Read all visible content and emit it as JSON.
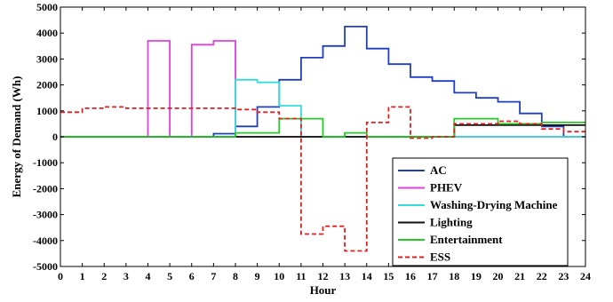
{
  "chart_data": {
    "type": "line",
    "title": "",
    "xlabel": "Hour",
    "ylabel": "Energy of Demand (Wh)",
    "xlim": [
      0,
      24
    ],
    "ylim": [
      -5000,
      5000
    ],
    "xticks": [
      "0",
      "1",
      "2",
      "3",
      "4",
      "5",
      "6",
      "7",
      "8",
      "9",
      "10",
      "11",
      "12",
      "13",
      "14",
      "15",
      "16",
      "17",
      "18",
      "19",
      "20",
      "21",
      "22",
      "23",
      "24"
    ],
    "yticks": [
      "5000",
      "4000",
      "3000",
      "2000",
      "1000",
      "0",
      "-1000",
      "-2000",
      "-3000",
      "-4000",
      "-5000"
    ],
    "grid": false,
    "legend_position": "bottom-right",
    "series": [
      {
        "name": "AC",
        "color": "#1f3fbf",
        "dash": "solid",
        "values": [
          0,
          0,
          0,
          0,
          0,
          0,
          0,
          120,
          400,
          1150,
          2200,
          3050,
          3500,
          4250,
          3400,
          2800,
          2300,
          2150,
          1700,
          1500,
          1350,
          900,
          400,
          0
        ]
      },
      {
        "name": "PHEV",
        "color": "#e040e0",
        "dash": "solid",
        "values": [
          0,
          0,
          0,
          0,
          3700,
          0,
          3550,
          3700,
          0,
          0,
          0,
          0,
          0,
          0,
          0,
          0,
          0,
          0,
          0,
          0,
          0,
          0,
          0,
          0
        ]
      },
      {
        "name": "Washing-Drying Machine",
        "color": "#33dddd",
        "dash": "solid",
        "values": [
          0,
          0,
          0,
          0,
          0,
          0,
          0,
          0,
          2200,
          2100,
          1200,
          0,
          0,
          0,
          0,
          0,
          0,
          0,
          0,
          0,
          0,
          0,
          0,
          0
        ]
      },
      {
        "name": "Lighting",
        "color": "#111111",
        "dash": "solid",
        "values": [
          0,
          0,
          0,
          0,
          0,
          0,
          0,
          0,
          0,
          0,
          0,
          0,
          0,
          0,
          0,
          0,
          0,
          0,
          450,
          450,
          450,
          450,
          450,
          450
        ]
      },
      {
        "name": "Entertainment",
        "color": "#22cc22",
        "dash": "solid",
        "values": [
          0,
          0,
          0,
          0,
          0,
          0,
          0,
          0,
          150,
          150,
          700,
          700,
          0,
          150,
          0,
          0,
          0,
          0,
          700,
          700,
          500,
          500,
          550,
          550
        ]
      },
      {
        "name": "ESS",
        "color": "#e02020",
        "dash": "dashed",
        "values": [
          950,
          1100,
          1150,
          1100,
          1100,
          1100,
          1100,
          1100,
          1050,
          950,
          700,
          -3750,
          -3450,
          -4400,
          550,
          1150,
          -50,
          0,
          500,
          500,
          600,
          500,
          300,
          200
        ]
      }
    ]
  }
}
